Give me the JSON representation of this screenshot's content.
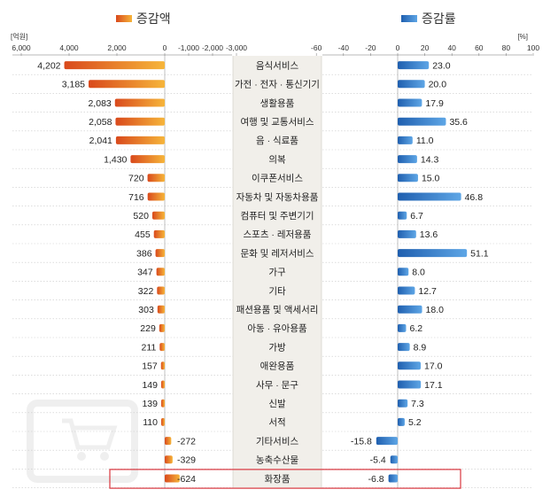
{
  "colors": {
    "amount_dark": "#d9491c",
    "amount_light": "#f6b53a",
    "rate_dark": "#1f5faf",
    "rate_light": "#5ea6e6",
    "highlight_border": "#d9363e",
    "category_bg": "#f1efea"
  },
  "icons": {
    "watermark": "computer-shopping-cart-icon"
  },
  "chart_data": {
    "type": "bar",
    "layout": "back-to-back horizontal bars with center category labels",
    "highlighted_category": "화장품",
    "categories": [
      "음식서비스",
      "가전 · 전자 · 통신기기",
      "생활용품",
      "여행 및 교통서비스",
      "음 · 식료품",
      "의복",
      "이쿠폰서비스",
      "자동차 및 자동차용품",
      "컴퓨터 및 주변기기",
      "스포츠 · 레저용품",
      "문화 및 레저서비스",
      "가구",
      "기타",
      "패션용품 및 액세서리",
      "아동 · 유아용품",
      "가방",
      "애완용품",
      "사무 · 문구",
      "신발",
      "서적",
      "기타서비스",
      "농축수산물",
      "화장품"
    ],
    "series": [
      {
        "name": "증감액",
        "unit": "[억원]",
        "values": [
          4202,
          3185,
          2083,
          2058,
          2041,
          1430,
          720,
          716,
          520,
          455,
          386,
          347,
          322,
          303,
          229,
          211,
          157,
          149,
          139,
          110,
          -272,
          -329,
          -624
        ],
        "labels": [
          "4,202",
          "3,185",
          "2,083",
          "2,058",
          "2,041",
          "1,430",
          "720",
          "716",
          "520",
          "455",
          "386",
          "347",
          "322",
          "303",
          "229",
          "211",
          "157",
          "149",
          "139",
          "110",
          "-272",
          "-329",
          "-624"
        ],
        "axis_ticks": [
          "6,000",
          "4,000",
          "2,000",
          "0",
          "-1,000",
          "-2,000",
          "-3,000"
        ]
      },
      {
        "name": "증감률",
        "unit": "[%]",
        "values": [
          23.0,
          20.0,
          17.9,
          35.6,
          11.0,
          14.3,
          15.0,
          46.8,
          6.7,
          13.6,
          51.1,
          8.0,
          12.7,
          18.0,
          6.2,
          8.9,
          17.0,
          17.1,
          7.3,
          5.2,
          -15.8,
          -5.4,
          -6.8
        ],
        "labels": [
          "23.0",
          "20.0",
          "17.9",
          "35.6",
          "11.0",
          "14.3",
          "15.0",
          "46.8",
          "6.7",
          "13.6",
          "51.1",
          "8.0",
          "12.7",
          "18.0",
          "6.2",
          "8.9",
          "17.0",
          "17.1",
          "7.3",
          "5.2",
          "-15.8",
          "-5.4",
          "-6.8"
        ],
        "axis_ticks": [
          "-60",
          "-40",
          "-20",
          "0",
          "20",
          "40",
          "60",
          "80",
          "100"
        ]
      }
    ]
  }
}
